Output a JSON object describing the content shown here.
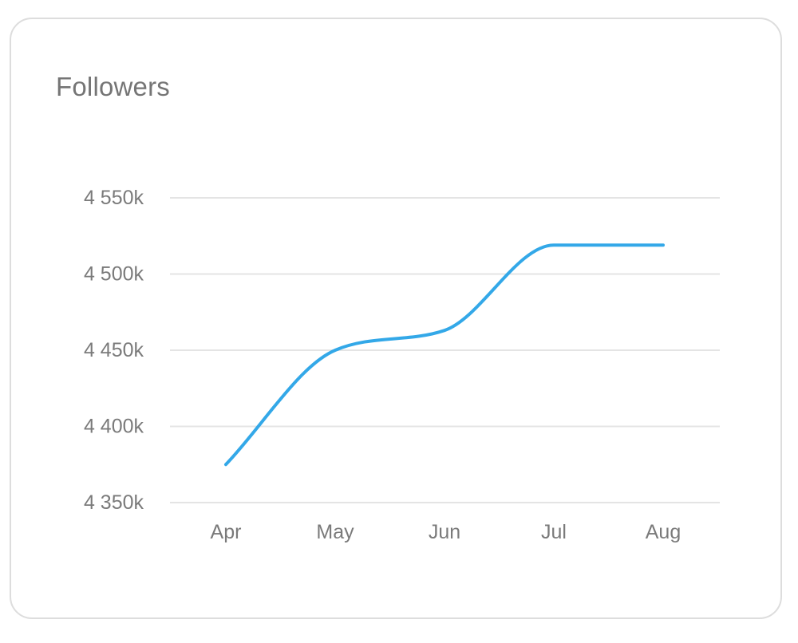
{
  "card": {
    "title": "Followers"
  },
  "colors": {
    "series": "#33a8e8",
    "grid": "#e4e4e4",
    "text": "#757575",
    "border": "#dddddd"
  },
  "chart_data": {
    "type": "line",
    "title": "Followers",
    "xlabel": "",
    "ylabel": "",
    "categories": [
      "Apr",
      "May",
      "Jun",
      "Jul",
      "Aug"
    ],
    "series": [
      {
        "values": [
          4375,
          4450,
          4463,
          4519,
          4519
        ]
      }
    ],
    "y_ticks": [
      4350,
      4400,
      4450,
      4500,
      4550
    ],
    "y_tick_labels": [
      "4 350k",
      "4 400k",
      "4 450k",
      "4 500k",
      "4 550k"
    ],
    "ylim": [
      4350,
      4550
    ],
    "grid": true,
    "smooth": true,
    "legend": "none"
  }
}
